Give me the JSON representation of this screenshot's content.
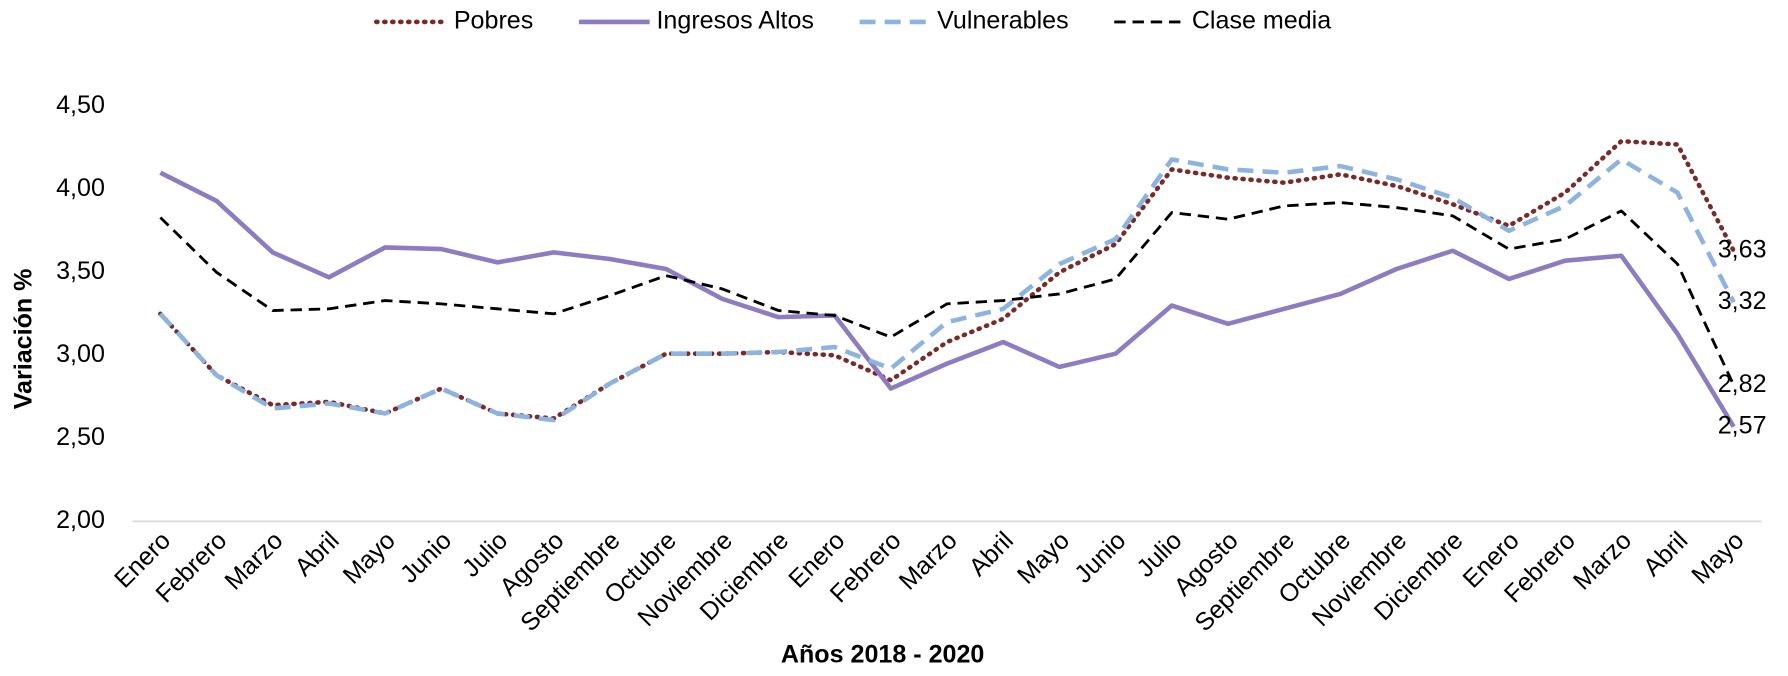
{
  "chart_data": {
    "type": "line",
    "y_label": "Variación  %",
    "x_label": "Años 2018 - 2020",
    "categories": [
      "Enero",
      "Febrero",
      "Marzo",
      "Abril",
      "Mayo",
      "Junio",
      "Julio",
      "Agosto",
      "Septiembre",
      "Octubre",
      "Noviembre",
      "Diciembre",
      "Enero",
      "Febrero",
      "Marzo",
      "Abril",
      "Mayo",
      "Junio",
      "Julio",
      "Agosto",
      "Septiembre",
      "Octubre",
      "Noviembre",
      "Diciembre",
      "Enero",
      "Febrero",
      "Marzo",
      "Abril",
      "Mayo"
    ],
    "ylim": [
      2,
      4.5
    ],
    "yticks": [
      {
        "value": 2,
        "label": "2,00"
      },
      {
        "value": 2.5,
        "label": "2,50"
      },
      {
        "value": 3,
        "label": "3,00"
      },
      {
        "value": 3.5,
        "label": "3,50"
      },
      {
        "value": 4,
        "label": "4,00"
      },
      {
        "value": 4.5,
        "label": "4,50"
      }
    ],
    "legend": "top",
    "series": [
      {
        "name": "Pobres",
        "color": "#7b2a2a",
        "dash": "dotted",
        "values": [
          3.25,
          2.88,
          2.7,
          2.72,
          2.65,
          2.8,
          2.65,
          2.62,
          2.83,
          3.01,
          3.01,
          3.02,
          3.0,
          2.85,
          3.08,
          3.22,
          3.5,
          3.67,
          4.12,
          4.07,
          4.04,
          4.09,
          4.02,
          3.91,
          3.78,
          3.98,
          4.29,
          4.27,
          3.63
        ],
        "value_labels": [
          null,
          null,
          null,
          null,
          null,
          null,
          null,
          null,
          null,
          null,
          null,
          null,
          null,
          null,
          null,
          null,
          null,
          null,
          null,
          null,
          null,
          null,
          null,
          null,
          null,
          null,
          null,
          null,
          "3,63"
        ]
      },
      {
        "name": "Ingresos Altos",
        "color": "#8e7cc3",
        "dash": "solid",
        "values": [
          4.1,
          3.93,
          3.62,
          3.47,
          3.65,
          3.64,
          3.56,
          3.62,
          3.58,
          3.52,
          3.34,
          3.23,
          3.24,
          2.8,
          2.95,
          3.08,
          2.93,
          3.01,
          3.3,
          3.19,
          3.28,
          3.37,
          3.52,
          3.63,
          3.46,
          3.57,
          3.6,
          3.13,
          2.57
        ],
        "value_labels": [
          null,
          null,
          null,
          null,
          null,
          null,
          null,
          null,
          null,
          null,
          null,
          null,
          null,
          null,
          null,
          null,
          null,
          null,
          null,
          null,
          null,
          null,
          null,
          null,
          null,
          null,
          null,
          null,
          "2,57"
        ]
      },
      {
        "name": "Vulnerables",
        "color": "#8db3e2",
        "dash": "dashed",
        "values": [
          3.25,
          2.88,
          2.68,
          2.71,
          2.65,
          2.8,
          2.65,
          2.61,
          2.83,
          3.01,
          3.01,
          3.02,
          3.05,
          2.92,
          3.2,
          3.28,
          3.55,
          3.7,
          4.18,
          4.12,
          4.1,
          4.14,
          4.06,
          3.95,
          3.75,
          3.9,
          4.18,
          3.98,
          3.32
        ],
        "value_labels": [
          null,
          null,
          null,
          null,
          null,
          null,
          null,
          null,
          null,
          null,
          null,
          null,
          null,
          null,
          null,
          null,
          null,
          null,
          null,
          null,
          null,
          null,
          null,
          null,
          null,
          null,
          null,
          null,
          "3,32"
        ]
      },
      {
        "name": "Clase media",
        "color": "#000000",
        "dash": "outline",
        "values": [
          3.83,
          3.5,
          3.27,
          3.28,
          3.33,
          3.31,
          3.28,
          3.25,
          3.36,
          3.48,
          3.4,
          3.27,
          3.24,
          3.11,
          3.31,
          3.33,
          3.37,
          3.46,
          3.86,
          3.82,
          3.9,
          3.92,
          3.89,
          3.84,
          3.64,
          3.7,
          3.87,
          3.55,
          2.82
        ],
        "value_labels": [
          null,
          null,
          null,
          null,
          null,
          null,
          null,
          null,
          null,
          null,
          null,
          null,
          null,
          null,
          null,
          null,
          null,
          null,
          null,
          null,
          null,
          null,
          null,
          null,
          null,
          null,
          null,
          null,
          "2,82"
        ]
      }
    ]
  }
}
